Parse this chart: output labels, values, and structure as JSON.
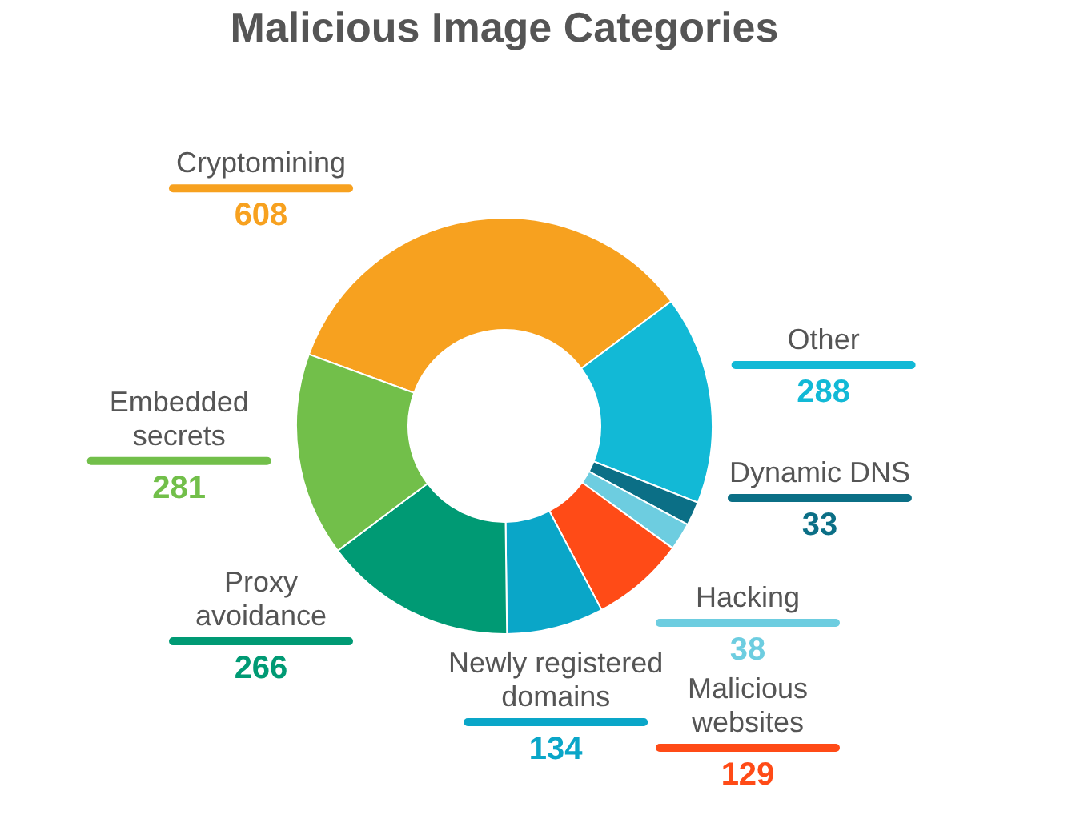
{
  "chart_data": {
    "type": "donut",
    "title": "Malicious Image Categories",
    "categories": [
      "Cryptomining",
      "Other",
      "Dynamic DNS",
      "Hacking",
      "Malicious websites",
      "Newly registered domains",
      "Proxy avoidance",
      "Embedded secrets"
    ],
    "values": [
      608,
      288,
      33,
      38,
      129,
      134,
      266,
      281
    ],
    "colors": [
      "#f7a11f",
      "#12b9d6",
      "#0b6f86",
      "#6dcde0",
      "#ff4b17",
      "#0aa6c8",
      "#009a74",
      "#72bf4a"
    ],
    "data_labels": true,
    "legend": false
  }
}
